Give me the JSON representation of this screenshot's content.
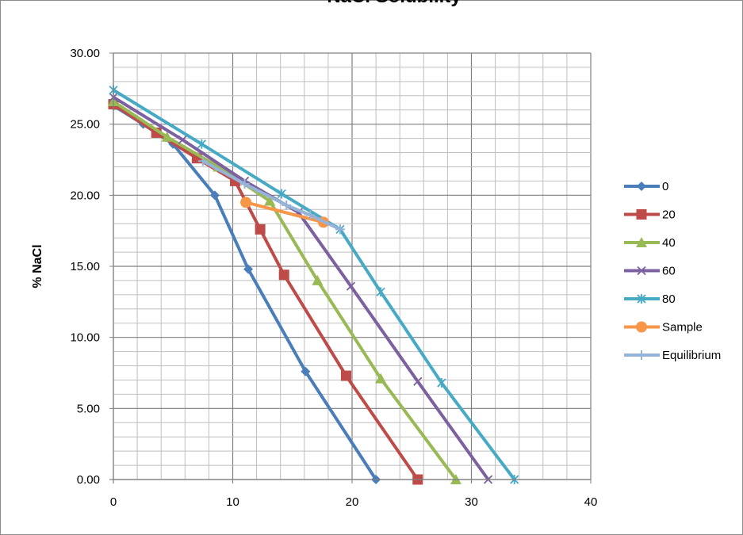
{
  "chart_data": {
    "type": "line",
    "title": "NaCl Solubility",
    "xlabel": "",
    "ylabel": "% NaCl",
    "xlim": [
      0,
      40
    ],
    "ylim": [
      0,
      30
    ],
    "x_ticks": [
      "0",
      "10",
      "20",
      "30",
      "40"
    ],
    "y_ticks": [
      "0.00",
      "5.00",
      "10.00",
      "15.00",
      "20.00",
      "25.00",
      "30.00"
    ],
    "grid": true,
    "legend_position": "right",
    "series": [
      {
        "name": "0",
        "color": "#4a7ebb",
        "marker": "diamond",
        "points": [
          [
            0,
            26.3
          ],
          [
            2.5,
            25.0
          ],
          [
            5.0,
            23.6
          ],
          [
            8.5,
            20.0
          ],
          [
            11.3,
            14.8
          ],
          [
            16.1,
            7.6
          ],
          [
            22.0,
            0.0
          ]
        ]
      },
      {
        "name": "20",
        "color": "#be4b48",
        "marker": "square",
        "points": [
          [
            0,
            26.4
          ],
          [
            3.6,
            24.4
          ],
          [
            7.0,
            22.6
          ],
          [
            10.2,
            21.0
          ],
          [
            12.3,
            17.6
          ],
          [
            14.3,
            14.4
          ],
          [
            19.5,
            7.3
          ],
          [
            25.5,
            0.0
          ]
        ]
      },
      {
        "name": "40",
        "color": "#98b954",
        "marker": "triangle",
        "points": [
          [
            0,
            26.6
          ],
          [
            4.5,
            24.1
          ],
          [
            8.8,
            22.0
          ],
          [
            13.1,
            19.6
          ],
          [
            17.1,
            14.0
          ],
          [
            22.4,
            7.1
          ],
          [
            28.7,
            0.0
          ]
        ]
      },
      {
        "name": "60",
        "color": "#7d60a0",
        "marker": "x",
        "points": [
          [
            0,
            26.9
          ],
          [
            5.8,
            23.9
          ],
          [
            11.0,
            21.0
          ],
          [
            15.5,
            18.8
          ],
          [
            19.9,
            13.6
          ],
          [
            25.5,
            6.9
          ],
          [
            31.4,
            0.0
          ]
        ]
      },
      {
        "name": "80",
        "color": "#46aac4",
        "marker": "star",
        "points": [
          [
            0,
            27.4
          ],
          [
            7.4,
            23.6
          ],
          [
            14.1,
            20.1
          ],
          [
            19.0,
            17.6
          ],
          [
            22.4,
            13.2
          ],
          [
            27.5,
            6.8
          ],
          [
            33.6,
            0.0
          ]
        ]
      },
      {
        "name": "Sample",
        "color": "#f79646",
        "marker": "circle",
        "points": [
          [
            11.1,
            19.5
          ],
          [
            17.6,
            18.1
          ]
        ]
      },
      {
        "name": "Equilibrium",
        "color": "#95b3d7",
        "marker": "plus",
        "points": [
          [
            7.5,
            22.4
          ],
          [
            11.0,
            20.8
          ],
          [
            14.5,
            19.3
          ],
          [
            16.5,
            18.6
          ],
          [
            19.0,
            17.6
          ]
        ]
      }
    ]
  }
}
